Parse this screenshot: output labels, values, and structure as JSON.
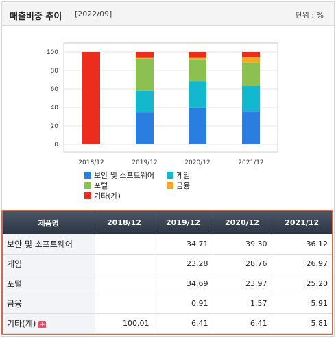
{
  "header": {
    "title": "매출비중 추이",
    "period": "[2022/09]",
    "unit": "단위 : %"
  },
  "chart_data": {
    "type": "bar",
    "stacked": true,
    "categories": [
      "2018/12",
      "2019/12",
      "2020/12",
      "2021/12"
    ],
    "ylim": [
      0,
      100
    ],
    "yticks": [
      0,
      20,
      40,
      60,
      80,
      100
    ],
    "grid": true,
    "legend_position": "bottom",
    "series": [
      {
        "name": "보안 및 소프트웨어",
        "color": "#2a7de1",
        "values": [
          0,
          34.71,
          39.3,
          36.12
        ]
      },
      {
        "name": "게임",
        "color": "#14b8cc",
        "values": [
          0,
          23.28,
          28.76,
          26.97
        ]
      },
      {
        "name": "포털",
        "color": "#8cc152",
        "values": [
          0,
          34.69,
          23.97,
          25.2
        ]
      },
      {
        "name": "금융",
        "color": "#f6a821",
        "values": [
          0,
          0.91,
          1.57,
          5.91
        ]
      },
      {
        "name": "기타(계)",
        "color": "#ec2c1c",
        "values": [
          100.01,
          6.41,
          6.41,
          5.81
        ]
      }
    ]
  },
  "table": {
    "headers": [
      "제품명",
      "2018/12",
      "2019/12",
      "2020/12",
      "2021/12"
    ],
    "rows": [
      {
        "name": "보안 및 소프트웨어",
        "values": [
          "",
          "34.71",
          "39.30",
          "36.12"
        ]
      },
      {
        "name": "게임",
        "values": [
          "",
          "23.28",
          "28.76",
          "26.97"
        ]
      },
      {
        "name": "포털",
        "values": [
          "",
          "34.69",
          "23.97",
          "25.20"
        ]
      },
      {
        "name": "금융",
        "values": [
          "",
          "0.91",
          "1.57",
          "5.91"
        ]
      },
      {
        "name": "기타(계)",
        "values": [
          "100.01",
          "6.41",
          "6.41",
          "5.81"
        ]
      }
    ]
  },
  "icons": {
    "expand": "plus-icon"
  }
}
